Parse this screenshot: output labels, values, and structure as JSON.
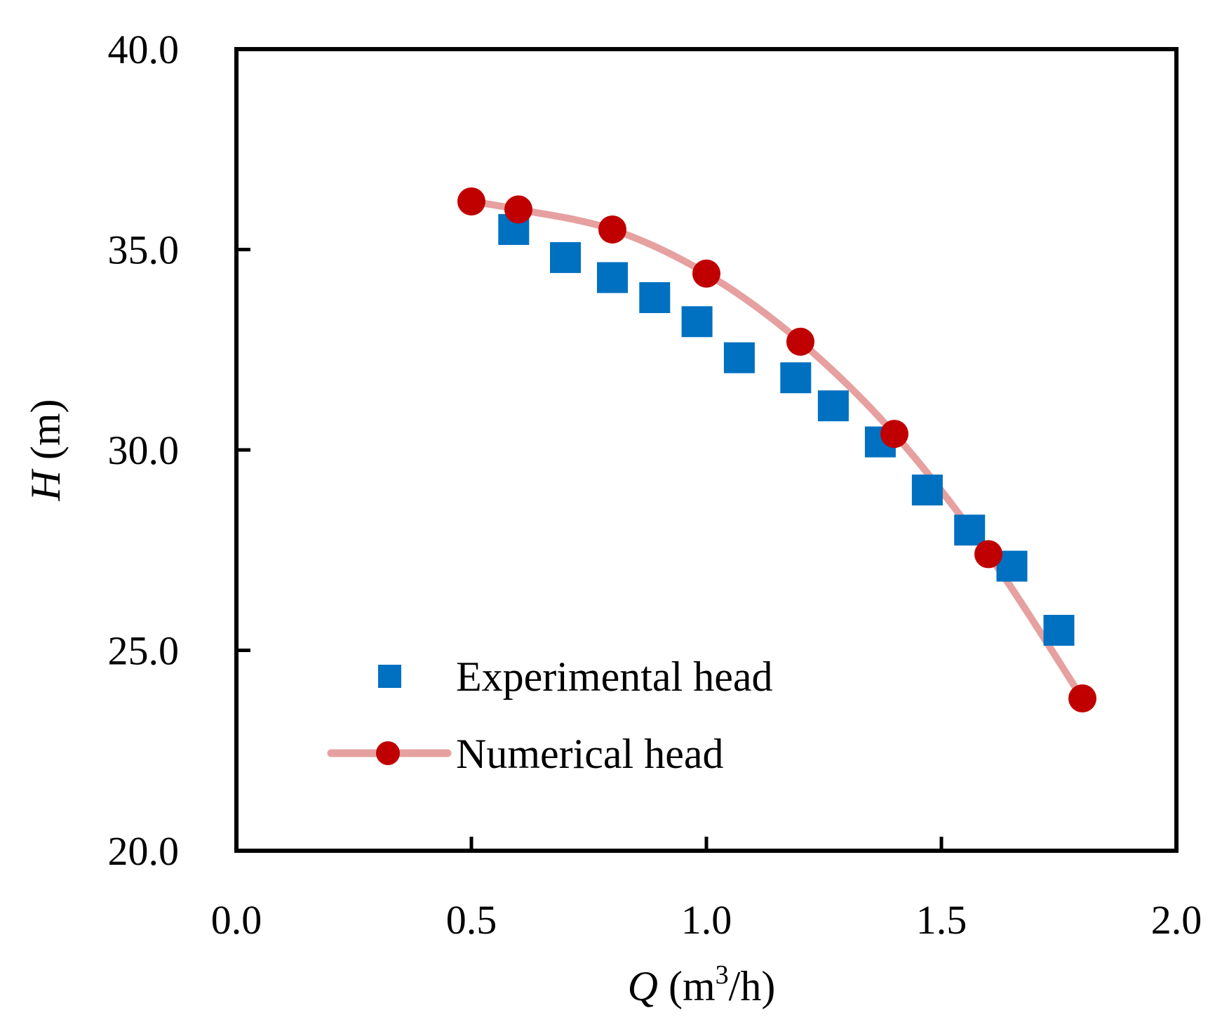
{
  "chart_data": {
    "type": "scatter",
    "xlim": [
      0.0,
      2.0
    ],
    "ylim": [
      20.0,
      40.0
    ],
    "x_ticks": [
      "0.0",
      "0.5",
      "1.0",
      "1.5",
      "2.0"
    ],
    "y_ticks": [
      "20.0",
      "25.0",
      "30.0",
      "35.0",
      "40.0"
    ],
    "x_tick_values": [
      0.0,
      0.5,
      1.0,
      1.5,
      2.0
    ],
    "y_tick_values": [
      20.0,
      25.0,
      30.0,
      35.0,
      40.0
    ],
    "xlabel": {
      "var": "Q",
      "open": " (m",
      "sup": "3",
      "close": "/h)"
    },
    "ylabel": {
      "var": "H",
      "rest": " (m)"
    },
    "grid": false,
    "legend_position": "bottom-left",
    "series": [
      {
        "name": "Experimental head",
        "marker": "square",
        "line": false,
        "color": "#0070C0",
        "x": [
          0.59,
          0.7,
          0.8,
          0.89,
          0.98,
          1.07,
          1.19,
          1.27,
          1.37,
          1.47,
          1.56,
          1.65,
          1.75
        ],
        "y": [
          35.5,
          34.8,
          34.3,
          33.8,
          33.2,
          32.3,
          31.8,
          31.1,
          30.2,
          29.0,
          28.0,
          27.1,
          25.5
        ]
      },
      {
        "name": "Numerical head",
        "marker": "circle",
        "line": true,
        "color": "#C00000",
        "line_color": "#E6A0A0",
        "x": [
          0.5,
          0.6,
          0.8,
          1.0,
          1.2,
          1.4,
          1.6,
          1.8
        ],
        "y": [
          36.2,
          36.0,
          35.5,
          34.4,
          32.7,
          30.4,
          27.4,
          23.8
        ]
      }
    ]
  }
}
